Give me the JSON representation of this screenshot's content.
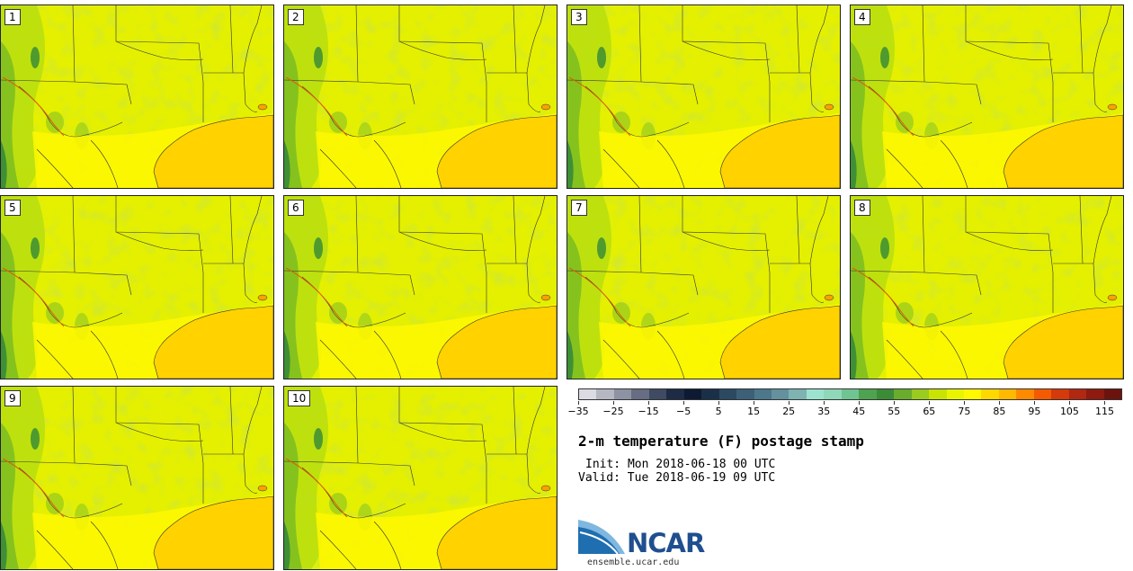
{
  "title": "2-m temperature (F) postage stamp",
  "init": "Init: Mon 2018-06-18 00 UTC",
  "valid": "Valid: Tue 2018-06-19 09 UTC",
  "panels": [
    {
      "label": "1"
    },
    {
      "label": "2"
    },
    {
      "label": "3"
    },
    {
      "label": "4"
    },
    {
      "label": "5"
    },
    {
      "label": "6"
    },
    {
      "label": "7"
    },
    {
      "label": "8"
    },
    {
      "label": "9"
    },
    {
      "label": "10"
    }
  ],
  "colorbar": {
    "colors": [
      "#dadbe3",
      "#b5b8c3",
      "#8e93a3",
      "#676d82",
      "#3f4a63",
      "#1d2b45",
      "#0e1a33",
      "#1a3049",
      "#2b4a62",
      "#3c6078",
      "#4d778b",
      "#63919d",
      "#7eb3b2",
      "#9ce3cf",
      "#8fd8b8",
      "#6fc491",
      "#4ea250",
      "#3c8c37",
      "#69ad2e",
      "#9acb1f",
      "#c8e304",
      "#e9f500",
      "#fff800",
      "#ffd800",
      "#ffb900",
      "#ff8a00",
      "#f45a00",
      "#d43a0a",
      "#b02712",
      "#8e1a10",
      "#6d130e"
    ],
    "tick_labels": [
      "−35",
      "−25",
      "−15",
      "−5",
      "5",
      "15",
      "25",
      "35",
      "45",
      "55",
      "65",
      "75",
      "85",
      "95",
      "105",
      "115"
    ],
    "tick_values": [
      -35,
      -25,
      -15,
      -5,
      5,
      15,
      25,
      35,
      45,
      55,
      65,
      75,
      85,
      95,
      105,
      115
    ],
    "min": -35,
    "max": 120
  },
  "logo_text": "NCAR",
  "url": "ensemble.ucar.edu"
}
